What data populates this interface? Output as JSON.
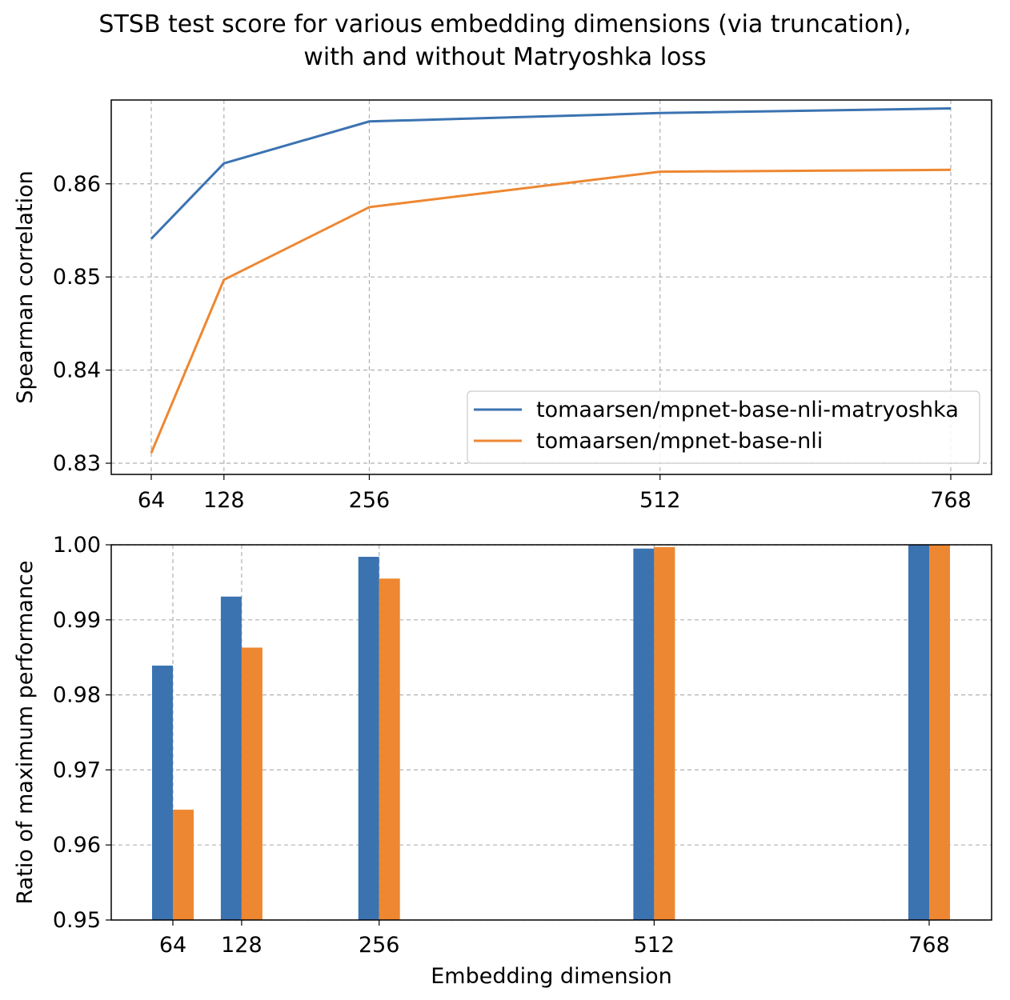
{
  "figure": {
    "title_line1": "STSB test score for various embedding dimensions (via truncation),",
    "title_line2": "with and without Matryoshka loss"
  },
  "colors": {
    "matryoshka": "#3b73b1",
    "baseline": "#ee8731",
    "grid": "#b0b0b0"
  },
  "chart_data": [
    {
      "type": "line",
      "xlabel": "",
      "ylabel": "Spearman correlation",
      "x": [
        64,
        128,
        256,
        512,
        768
      ],
      "xticks": [
        "64",
        "128",
        "256",
        "512",
        "768"
      ],
      "ylim": [
        0.8288,
        0.869
      ],
      "yticks": [
        0.83,
        0.84,
        0.85,
        0.86
      ],
      "ytick_labels": [
        "0.83",
        "0.84",
        "0.85",
        "0.86"
      ],
      "grid": true,
      "legend_position": "lower right",
      "series": [
        {
          "name": "tomaarsen/mpnet-base-nli-matryoshka",
          "color": "#3b73b1",
          "values": [
            0.8541,
            0.8622,
            0.8667,
            0.8676,
            0.8681
          ]
        },
        {
          "name": "tomaarsen/mpnet-base-nli",
          "color": "#ee8731",
          "values": [
            0.8311,
            0.8497,
            0.8575,
            0.8613,
            0.8615
          ]
        }
      ]
    },
    {
      "type": "bar",
      "xlabel": "Embedding dimension",
      "ylabel": "Ratio of maximum performance",
      "categories": [
        "64",
        "128",
        "256",
        "512",
        "768"
      ],
      "x": [
        64,
        128,
        256,
        512,
        768
      ],
      "ylim": [
        0.95,
        1.0
      ],
      "yticks": [
        0.95,
        0.96,
        0.97,
        0.98,
        0.99,
        1.0
      ],
      "ytick_labels": [
        "0.95",
        "0.96",
        "0.97",
        "0.98",
        "0.99",
        "1.00"
      ],
      "grid": true,
      "series": [
        {
          "name": "tomaarsen/mpnet-base-nli-matryoshka",
          "color": "#3b73b1",
          "values": [
            0.9839,
            0.9931,
            0.9984,
            0.9995,
            1.0
          ]
        },
        {
          "name": "tomaarsen/mpnet-base-nli",
          "color": "#ee8731",
          "values": [
            0.9647,
            0.9863,
            0.9955,
            0.9997,
            1.0
          ]
        }
      ]
    }
  ]
}
